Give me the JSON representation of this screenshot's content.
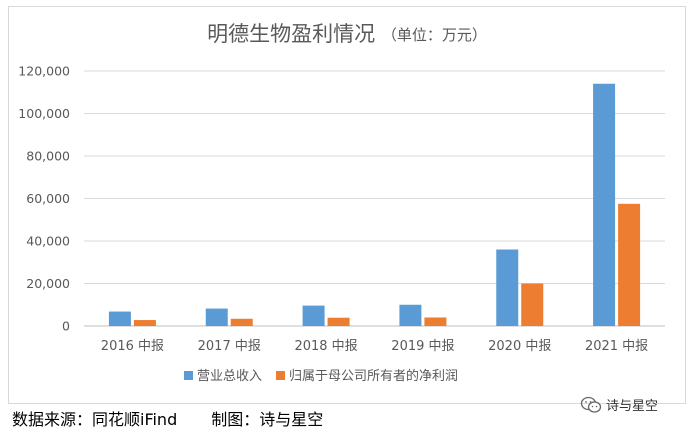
{
  "chart_data": {
    "type": "bar",
    "title": "明德生物盈利情况",
    "subtitle": "（单位：万元）",
    "categories": [
      "2016 中报",
      "2017 中报",
      "2018 中报",
      "2019 中报",
      "2020 中报",
      "2021 中报"
    ],
    "series": [
      {
        "name": "营业总收入",
        "values": [
          6800,
          8200,
          9600,
          10000,
          36000,
          114000
        ],
        "color": "#5b9bd5"
      },
      {
        "name": "归属于母公司所有者的净利润",
        "values": [
          2800,
          3400,
          3900,
          4000,
          20000,
          57500
        ],
        "color": "#ed7d31"
      }
    ],
    "ylim": [
      0,
      120000
    ],
    "yticks": [
      0,
      20000,
      40000,
      60000,
      80000,
      100000,
      120000
    ],
    "ytick_labels": [
      "0",
      "20,000",
      "40,000",
      "60,000",
      "80,000",
      "100,000",
      "120,000"
    ],
    "grid": true,
    "legend": "bottom"
  },
  "footer": {
    "source_label": "数据来源：同花顺iFind",
    "credit_label": "制图：诗与星空"
  },
  "watermark": {
    "text": "诗与星空",
    "icon": "wechat-icon"
  }
}
